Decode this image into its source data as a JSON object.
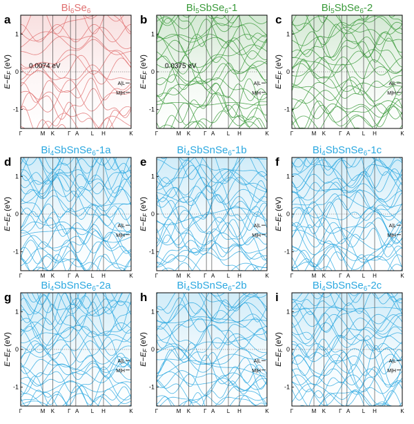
{
  "chart_data": [
    {
      "panel": "a",
      "type": "line",
      "title": "Bi6Se6",
      "title_base": "Bi",
      "title_parts": [
        [
          "Bi",
          ""
        ],
        [
          "6",
          "sub"
        ],
        [
          "Se",
          ""
        ],
        [
          "6",
          "sub"
        ]
      ],
      "color": "#e07070",
      "ylabel": "E−EF (eV)",
      "ylim": [
        -1.5,
        1.5
      ],
      "yticks": [
        "1",
        "0",
        "-1"
      ],
      "xticks": [
        "Γ",
        "M",
        "K",
        "Γ",
        "A",
        "L",
        "H",
        "K"
      ],
      "annotation": "0.0074 eV",
      "kpoint_labels": [
        "A|L",
        "M|H"
      ]
    },
    {
      "panel": "b",
      "type": "line",
      "title": "Bi5SbSe6-1",
      "title_parts": [
        [
          "Bi",
          ""
        ],
        [
          "5",
          "sub"
        ],
        [
          "SbSe",
          ""
        ],
        [
          "6",
          "sub"
        ],
        [
          "-1",
          ""
        ]
      ],
      "color": "#3a9a3a",
      "ylabel": "E−EF (eV)",
      "ylim": [
        -1.5,
        1.5
      ],
      "yticks": [
        "1",
        "0",
        "-1"
      ],
      "xticks": [
        "Γ",
        "M",
        "K",
        "Γ",
        "A",
        "L",
        "H",
        "K"
      ],
      "annotation": "0.0375 eV",
      "kpoint_labels": [
        "A|L",
        "M|H"
      ]
    },
    {
      "panel": "c",
      "type": "line",
      "title": "Bi5SbSe6-2",
      "title_parts": [
        [
          "Bi",
          ""
        ],
        [
          "5",
          "sub"
        ],
        [
          "SbSe",
          ""
        ],
        [
          "6",
          "sub"
        ],
        [
          "-2",
          ""
        ]
      ],
      "color": "#3a9a3a",
      "ylabel": "E−EF (eV)",
      "ylim": [
        -1.5,
        1.5
      ],
      "yticks": [
        "1",
        "0",
        "-1"
      ],
      "xticks": [
        "Γ",
        "M",
        "K",
        "Γ",
        "A",
        "L",
        "H",
        "K"
      ],
      "annotation": "",
      "kpoint_labels": [
        "A|L",
        "M|H"
      ]
    },
    {
      "panel": "d",
      "type": "line",
      "title": "Bi4SbSnSe6-1a",
      "title_parts": [
        [
          "Bi",
          ""
        ],
        [
          "4",
          "sub"
        ],
        [
          "SbSnSe",
          ""
        ],
        [
          "6",
          "sub"
        ],
        [
          "-1a",
          ""
        ]
      ],
      "color": "#2ba8e0",
      "ylabel": "E−EF (eV)",
      "ylim": [
        -1.5,
        1.5
      ],
      "yticks": [
        "1",
        "0",
        "-1"
      ],
      "xticks": [
        "Γ",
        "M",
        "K",
        "Γ",
        "A",
        "L",
        "H",
        "K"
      ],
      "annotation": "",
      "kpoint_labels": [
        "A|L",
        "M|H"
      ]
    },
    {
      "panel": "e",
      "type": "line",
      "title": "Bi4SbSnSe6-1b",
      "title_parts": [
        [
          "Bi",
          ""
        ],
        [
          "4",
          "sub"
        ],
        [
          "SbSnSe",
          ""
        ],
        [
          "6",
          "sub"
        ],
        [
          "-1b",
          ""
        ]
      ],
      "color": "#2ba8e0",
      "ylabel": "E−EF (eV)",
      "ylim": [
        -1.5,
        1.5
      ],
      "yticks": [
        "1",
        "0",
        "-1"
      ],
      "xticks": [
        "Γ",
        "M",
        "K",
        "Γ",
        "A",
        "L",
        "H",
        "K"
      ],
      "annotation": "",
      "kpoint_labels": [
        "A|L",
        "M|H"
      ]
    },
    {
      "panel": "f",
      "type": "line",
      "title": "Bi4SbSnSe6-1c",
      "title_parts": [
        [
          "Bi",
          ""
        ],
        [
          "4",
          "sub"
        ],
        [
          "SbSnSe",
          ""
        ],
        [
          "6",
          "sub"
        ],
        [
          "-1c",
          ""
        ]
      ],
      "color": "#2ba8e0",
      "ylabel": "E−EF (eV)",
      "ylim": [
        -1.5,
        1.5
      ],
      "yticks": [
        "1",
        "0",
        "-1"
      ],
      "xticks": [
        "Γ",
        "M",
        "K",
        "Γ",
        "A",
        "L",
        "H",
        "K"
      ],
      "annotation": "",
      "kpoint_labels": [
        "A|L",
        "M|H"
      ]
    },
    {
      "panel": "g",
      "type": "line",
      "title": "Bi4SbSnSe6-2a",
      "title_parts": [
        [
          "Bi",
          ""
        ],
        [
          "4",
          "sub"
        ],
        [
          "SbSnSe",
          ""
        ],
        [
          "6",
          "sub"
        ],
        [
          "-2a",
          ""
        ]
      ],
      "color": "#2ba8e0",
      "ylabel": "E−EF (eV)",
      "ylim": [
        -1.5,
        1.5
      ],
      "yticks": [
        "1",
        "0",
        "-1"
      ],
      "xticks": [
        "Γ",
        "M",
        "K",
        "Γ",
        "A",
        "L",
        "H",
        "K"
      ],
      "annotation": "",
      "kpoint_labels": [
        "A|L",
        "M|H"
      ]
    },
    {
      "panel": "h",
      "type": "line",
      "title": "Bi4SbSnSe6-2b",
      "title_parts": [
        [
          "Bi",
          ""
        ],
        [
          "4",
          "sub"
        ],
        [
          "SbSnSe",
          ""
        ],
        [
          "6",
          "sub"
        ],
        [
          "-2b",
          ""
        ]
      ],
      "color": "#2ba8e0",
      "ylabel": "E−EF (eV)",
      "ylim": [
        -1.5,
        1.5
      ],
      "yticks": [
        "1",
        "0",
        "-1"
      ],
      "xticks": [
        "Γ",
        "M",
        "K",
        "Γ",
        "A",
        "L",
        "H",
        "K"
      ],
      "annotation": "",
      "kpoint_labels": [
        "A|L",
        "M|H"
      ]
    },
    {
      "panel": "i",
      "type": "line",
      "title": "Bi4SbSnSe6-2c",
      "title_parts": [
        [
          "Bi",
          ""
        ],
        [
          "4",
          "sub"
        ],
        [
          "SbSnSe",
          ""
        ],
        [
          "6",
          "sub"
        ],
        [
          "-2c",
          ""
        ]
      ],
      "color": "#2ba8e0",
      "ylabel": "E−EF (eV)",
      "ylim": [
        -1.5,
        1.5
      ],
      "yticks": [
        "1",
        "0",
        "-1"
      ],
      "xticks": [
        "Γ",
        "M",
        "K",
        "Γ",
        "A",
        "L",
        "H",
        "K"
      ],
      "annotation": "",
      "kpoint_labels": [
        "A|L",
        "M|H"
      ]
    }
  ]
}
